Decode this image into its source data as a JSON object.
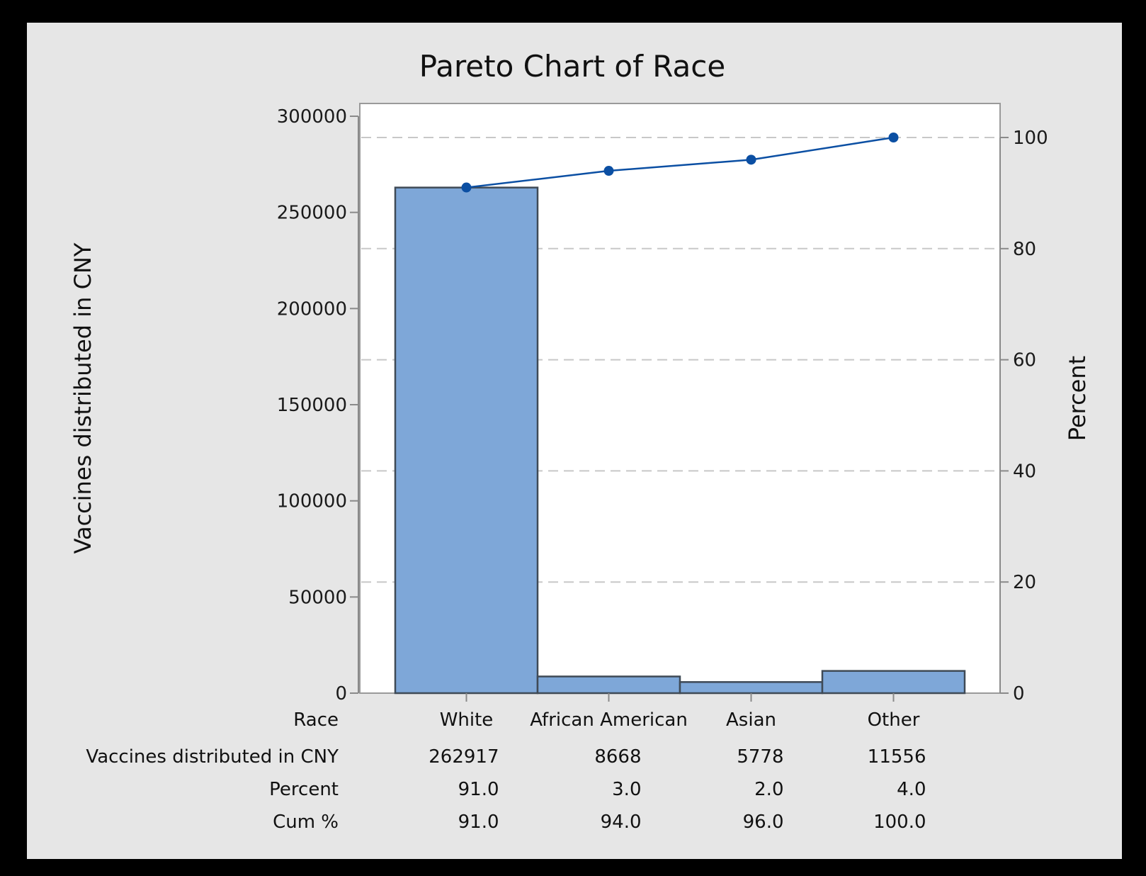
{
  "chart_data": {
    "type": "bar",
    "title": "Pareto Chart of Race",
    "ylabel": "Vaccines distributed in CNY",
    "y2label": "Percent",
    "categories": [
      "White",
      "African American",
      "Asian",
      "Other"
    ],
    "values": [
      262917,
      8668,
      5778,
      11556
    ],
    "percent": [
      91.0,
      3.0,
      2.0,
      4.0
    ],
    "cum_percent": [
      91.0,
      94.0,
      96.0,
      100.0
    ],
    "ylim": [
      0,
      300000
    ],
    "y2lim": [
      0,
      100
    ],
    "yticks": [
      0,
      50000,
      100000,
      150000,
      200000,
      250000,
      300000
    ],
    "y2ticks": [
      0,
      20,
      40,
      60,
      80,
      100
    ],
    "grid": "horizontal dashed at percent ticks",
    "bar_color": "#7ea7d8",
    "line_color": "#0b4fa3",
    "table": {
      "row_labels": [
        "Race",
        "Vaccines distributed in CNY",
        "Percent",
        "Cum %"
      ],
      "values_rows": [
        [
          "262917",
          "8668",
          "5778",
          "11556"
        ],
        [
          "91.0",
          "3.0",
          "2.0",
          "4.0"
        ],
        [
          "91.0",
          "94.0",
          "96.0",
          "100.0"
        ]
      ]
    }
  }
}
